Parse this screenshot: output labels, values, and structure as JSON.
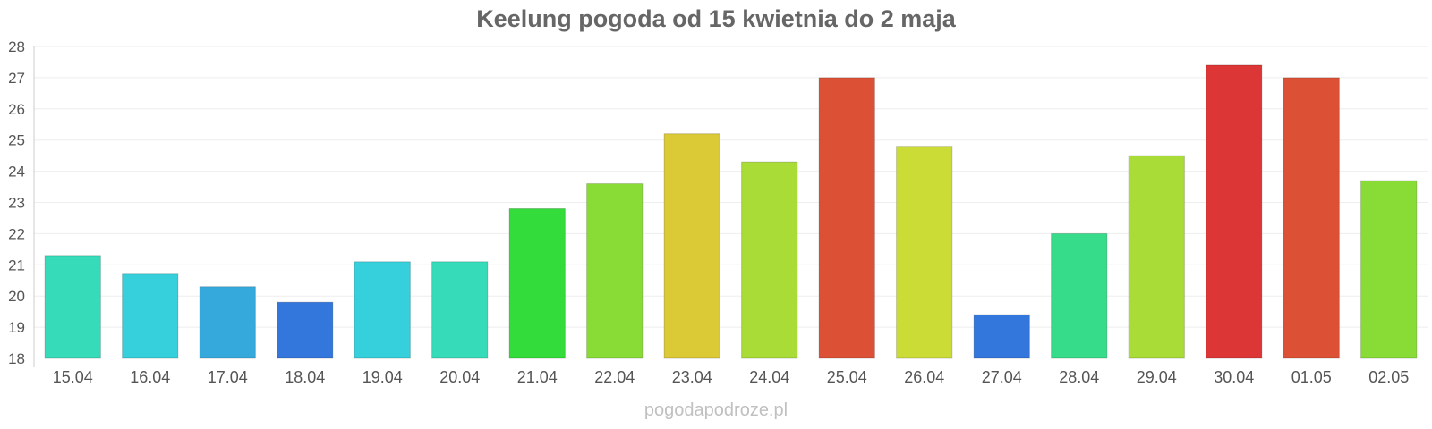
{
  "chart_data": {
    "type": "bar",
    "title": "Keelung pogoda od 15 kwietnia do 2 maja",
    "xlabel": "",
    "ylabel": "",
    "ylim": [
      18,
      28
    ],
    "yticks": [
      "18",
      "19",
      "20",
      "21",
      "22",
      "23",
      "24",
      "25",
      "26",
      "27",
      "28"
    ],
    "grid": true,
    "categories": [
      "15.04",
      "16.04",
      "17.04",
      "18.04",
      "19.04",
      "20.04",
      "21.04",
      "22.04",
      "23.04",
      "24.04",
      "25.04",
      "26.04",
      "27.04",
      "28.04",
      "29.04",
      "30.04",
      "01.05",
      "02.05"
    ],
    "values": [
      21.3,
      20.7,
      20.3,
      19.8,
      21.1,
      21.1,
      22.8,
      23.6,
      25.2,
      24.3,
      27.0,
      24.8,
      19.4,
      22.0,
      24.5,
      27.4,
      27.0,
      23.7
    ],
    "colors": [
      "#36dcba",
      "#36cfdc",
      "#36a9dc",
      "#3477dc",
      "#36cfdc",
      "#36dcba",
      "#33dc3a",
      "#89dc36",
      "#dcc936",
      "#a9dc36",
      "#dc5136",
      "#ccdc36",
      "#3477dc",
      "#36dc89",
      "#a9dc36",
      "#dc3636",
      "#dc5136",
      "#89dc36"
    ]
  },
  "watermark": "pogodapodroze.pl"
}
